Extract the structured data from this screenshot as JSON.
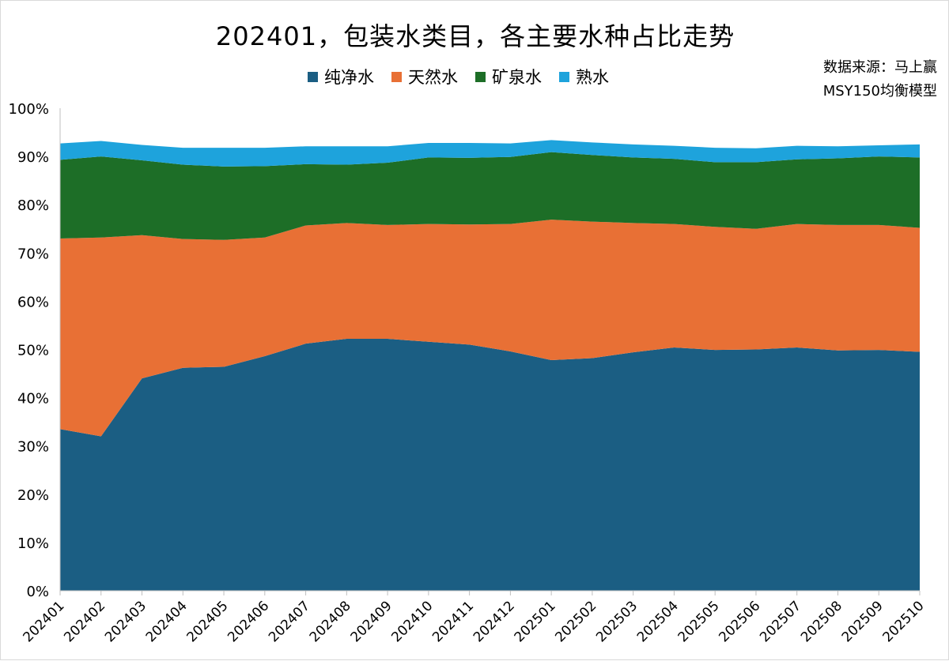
{
  "title": "202401，包装水类目，各主要水种占比走势",
  "source": {
    "line1": "数据来源：马上赢",
    "line2": "MSY150均衡模型"
  },
  "chart_data": {
    "type": "area",
    "stacked": true,
    "categories": [
      "202401",
      "202402",
      "202403",
      "202404",
      "202405",
      "202406",
      "202407",
      "202408",
      "202409",
      "202410",
      "202411",
      "202412",
      "202501",
      "202502",
      "202503",
      "202504",
      "202505",
      "202506",
      "202507",
      "202508",
      "202509",
      "202510"
    ],
    "ylim": [
      0,
      100
    ],
    "yticks": [
      0,
      10,
      20,
      30,
      40,
      50,
      60,
      70,
      80,
      90,
      100
    ],
    "ytick_suffix": "%",
    "legend_position": "top",
    "grid": false,
    "series": [
      {
        "name": "纯净水",
        "color": "#1b5e83",
        "values": [
          33.5,
          32.0,
          44.0,
          46.2,
          46.4,
          48.6,
          51.2,
          52.2,
          52.2,
          51.6,
          51.0,
          49.6,
          47.8,
          48.2,
          49.4,
          50.4,
          49.9,
          50.0,
          50.4,
          49.8,
          49.9,
          49.5
        ]
      },
      {
        "name": "天然水",
        "color": "#e87035",
        "values": [
          39.5,
          41.2,
          29.7,
          26.7,
          26.3,
          24.6,
          24.5,
          24.0,
          23.6,
          24.4,
          24.9,
          26.4,
          29.1,
          28.3,
          26.8,
          25.6,
          25.5,
          25.0,
          25.6,
          26.0,
          25.9,
          25.7
        ]
      },
      {
        "name": "矿泉水",
        "color": "#1d6e27",
        "values": [
          16.3,
          16.8,
          15.5,
          15.4,
          15.2,
          14.8,
          12.7,
          12.1,
          12.9,
          13.8,
          13.8,
          13.9,
          14.0,
          13.8,
          13.6,
          13.5,
          13.4,
          13.8,
          13.4,
          13.8,
          14.2,
          14.6
        ]
      },
      {
        "name": "熟水",
        "color": "#1ea3dc",
        "values": [
          3.4,
          3.2,
          3.2,
          3.5,
          3.9,
          3.8,
          3.7,
          3.8,
          3.4,
          3.0,
          3.1,
          2.8,
          2.5,
          2.6,
          2.7,
          2.7,
          3.0,
          2.9,
          2.8,
          2.5,
          2.3,
          2.7
        ]
      }
    ]
  }
}
